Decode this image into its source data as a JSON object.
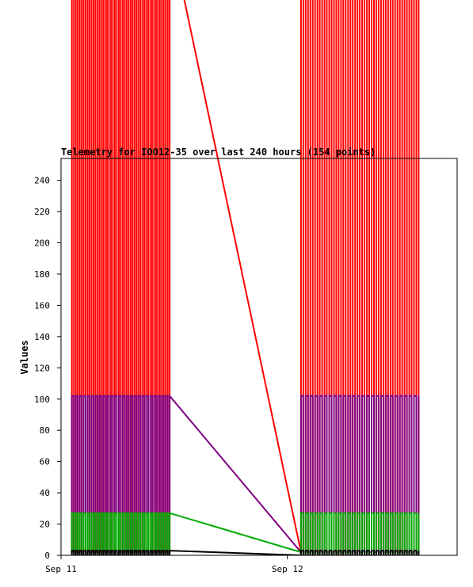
{
  "chart_data": {
    "type": "line",
    "title": "Telemetry for IOO12-35 over last 240 hours (154 points)",
    "xlabel": "",
    "ylabel": "Values",
    "ylim": [
      0,
      254
    ],
    "xlim": [
      0,
      1.75
    ],
    "x_unit": "days from Sep 11 00:00",
    "yticks": [
      0,
      20,
      40,
      60,
      80,
      100,
      120,
      140,
      160,
      180,
      200,
      220,
      240
    ],
    "xticks": [
      {
        "x": 0,
        "label": "Sep 11"
      },
      {
        "x": 1,
        "label": "Sep 12"
      }
    ],
    "grid": false,
    "legend": "none",
    "segments": [
      {
        "x_start": 0.048,
        "x_end": 0.48,
        "oscillations": 25
      },
      {
        "x_start": 1.06,
        "x_end": 1.58,
        "oscillations": 25
      }
    ],
    "series": [
      {
        "color": "#ff0000",
        "low": 2,
        "high": 400
      },
      {
        "color": "#800080",
        "low": 2,
        "high": 102
      },
      {
        "color": "#00aa00",
        "low": 2,
        "high": 27
      },
      {
        "color": "#000000",
        "low": 0,
        "high": 3
      }
    ]
  }
}
